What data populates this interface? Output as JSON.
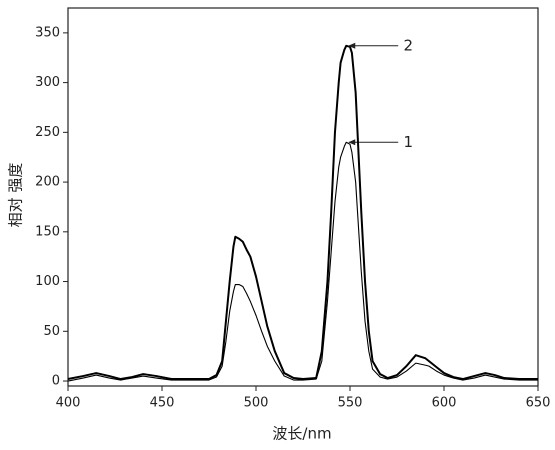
{
  "chart_data": {
    "type": "line",
    "xlabel": "波长/nm",
    "ylabel": "相对 强度",
    "x": [
      400,
      408,
      415,
      422,
      428,
      434,
      440,
      447,
      455,
      465,
      475,
      479,
      482,
      484,
      486,
      488,
      489,
      491,
      493,
      495,
      497,
      500,
      503,
      506,
      510,
      515,
      520,
      525,
      532,
      535,
      538,
      540,
      542,
      544,
      545,
      547,
      548,
      550,
      551,
      553,
      554,
      556,
      558,
      560,
      562,
      566,
      570,
      575,
      580,
      585,
      590,
      592,
      596,
      600,
      605,
      610,
      616,
      622,
      627,
      632,
      640,
      650
    ],
    "series": [
      {
        "name": "1",
        "color": "#000000",
        "values": [
          0,
          3,
          6,
          3,
          1,
          3,
          5,
          3,
          1,
          1,
          1,
          4,
          15,
          40,
          70,
          90,
          97,
          97,
          95,
          88,
          80,
          66,
          50,
          35,
          20,
          5,
          1,
          1,
          2,
          20,
          80,
          130,
          180,
          215,
          225,
          236,
          240,
          238,
          230,
          200,
          170,
          110,
          60,
          30,
          12,
          4,
          2,
          4,
          10,
          18,
          16,
          15,
          10,
          6,
          3,
          1,
          3,
          6,
          4,
          2,
          1,
          1
        ]
      },
      {
        "name": "2",
        "color": "#000000",
        "values": [
          2,
          5,
          8,
          5,
          2,
          4,
          7,
          5,
          2,
          2,
          2,
          6,
          20,
          60,
          100,
          135,
          145,
          143,
          140,
          132,
          125,
          105,
          80,
          55,
          30,
          8,
          3,
          2,
          3,
          30,
          100,
          170,
          250,
          300,
          320,
          333,
          337,
          336,
          330,
          290,
          250,
          170,
          100,
          50,
          20,
          7,
          3,
          6,
          15,
          26,
          23,
          20,
          14,
          8,
          4,
          2,
          5,
          8,
          6,
          3,
          2,
          2
        ]
      }
    ],
    "xlim": [
      400,
      650
    ],
    "xticks": [
      400,
      450,
      500,
      550,
      600,
      650
    ],
    "ylim": [
      -5,
      375
    ],
    "yticks": [
      0,
      50,
      100,
      150,
      200,
      250,
      300,
      350
    ]
  }
}
